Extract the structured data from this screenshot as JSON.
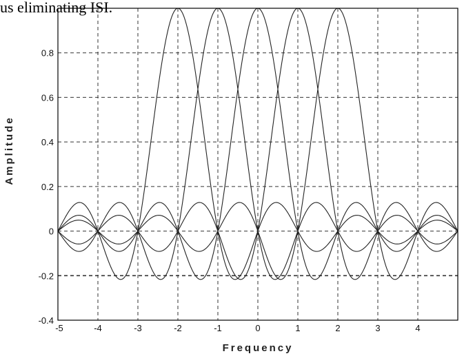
{
  "caption_text": "us eliminating ISI.",
  "chart_data": {
    "type": "line",
    "title": "",
    "xlabel": "Frequency",
    "ylabel": "Amplitude",
    "xlim": [
      -5,
      5
    ],
    "ylim": [
      -0.4,
      1.0
    ],
    "x_ticks": [
      -5,
      -4,
      -3,
      -2,
      -1,
      0,
      1,
      2,
      3,
      4
    ],
    "y_ticks": [
      -0.4,
      -0.2,
      0,
      0.2,
      0.4,
      0.6,
      0.8
    ],
    "y_tick_labels": [
      "-0.4",
      "-0.2",
      "0",
      "0.2",
      "0.4",
      "0.6",
      "0.8"
    ],
    "grid": true,
    "series": [
      {
        "center": -2,
        "function": "sinc",
        "peak": 1.0
      },
      {
        "center": -1,
        "function": "sinc",
        "peak": 1.0
      },
      {
        "center": 0,
        "function": "sinc",
        "peak": 1.0
      },
      {
        "center": 1,
        "function": "sinc",
        "peak": 1.0
      },
      {
        "center": 2,
        "function": "sinc",
        "peak": 1.0
      }
    ],
    "colors": {
      "line": "#222222",
      "grid": "#333333",
      "axis": "#000000"
    }
  }
}
